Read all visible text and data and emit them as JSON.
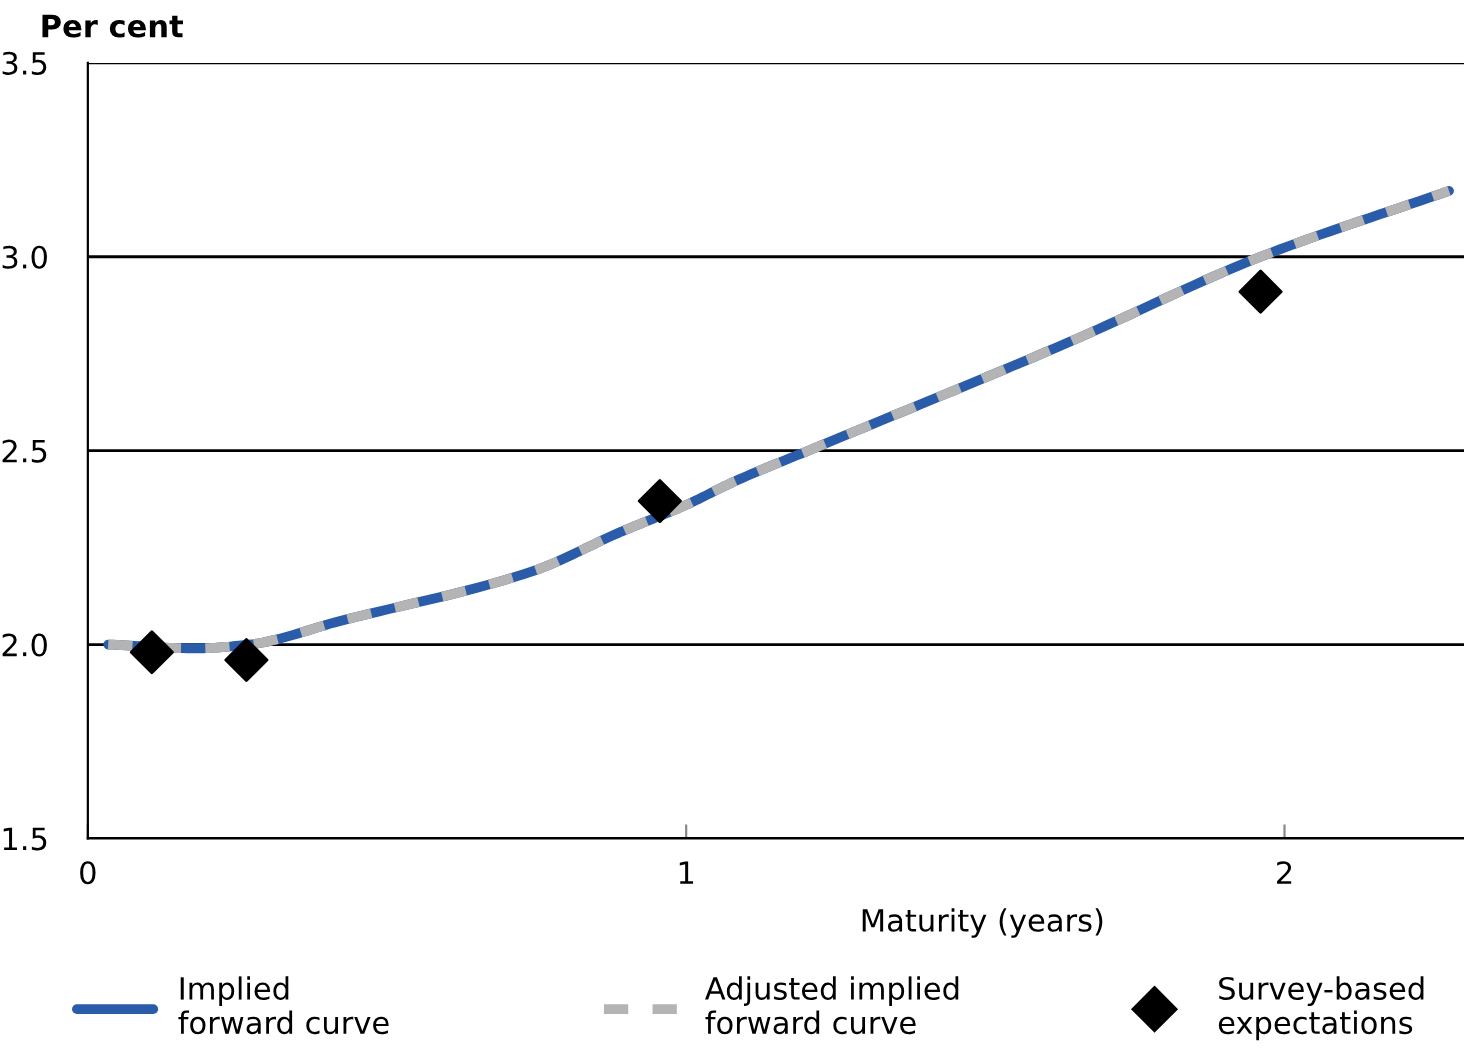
{
  "chart_data": {
    "type": "line",
    "ylabel": "Per cent",
    "xlabel": "Maturity (years)",
    "xlim": [
      0,
      2.3
    ],
    "xticks": [
      0,
      1,
      2
    ],
    "ylim": [
      1.5,
      3.5
    ],
    "yticks": [
      {
        "value": 1.5,
        "label": "1.5"
      },
      {
        "value": 2.0,
        "label": "2.0"
      },
      {
        "value": 2.5,
        "label": "2.5"
      },
      {
        "value": 3.0,
        "label": "3.0"
      },
      {
        "value": 3.5,
        "label": "3.5"
      }
    ],
    "grid": "y",
    "legend": "bottom",
    "series": [
      {
        "name": "Implied forward curve",
        "color": "#2a5caa",
        "line_style": "solid",
        "marker": "none",
        "x": [
          0.034,
          0.18,
          0.27,
          0.42,
          0.745,
          0.89,
          1.0,
          1.08,
          1.22,
          1.64,
          1.96,
          2.275
        ],
        "values": [
          2.0,
          1.99,
          2.0,
          2.06,
          2.19,
          2.29,
          2.36,
          2.42,
          2.51,
          2.78,
          3.0,
          3.17
        ]
      },
      {
        "name": "Adjusted implied forward curve",
        "color": "#b4b4b4",
        "line_style": "dashed",
        "marker": "none",
        "x": [
          0.034,
          0.18,
          0.27,
          0.42,
          0.745,
          0.89,
          1.0,
          1.08,
          1.22,
          1.64,
          1.96,
          2.275
        ],
        "values": [
          2.0,
          1.99,
          2.0,
          2.06,
          2.19,
          2.29,
          2.36,
          2.42,
          2.51,
          2.78,
          3.0,
          3.17
        ]
      },
      {
        "name": "Survey-based expectations",
        "type": "scatter",
        "color": "#000000",
        "marker": "diamond",
        "x": [
          0.107,
          0.265,
          0.956,
          1.96
        ],
        "values": [
          1.98,
          1.96,
          2.37,
          2.91
        ]
      }
    ]
  }
}
